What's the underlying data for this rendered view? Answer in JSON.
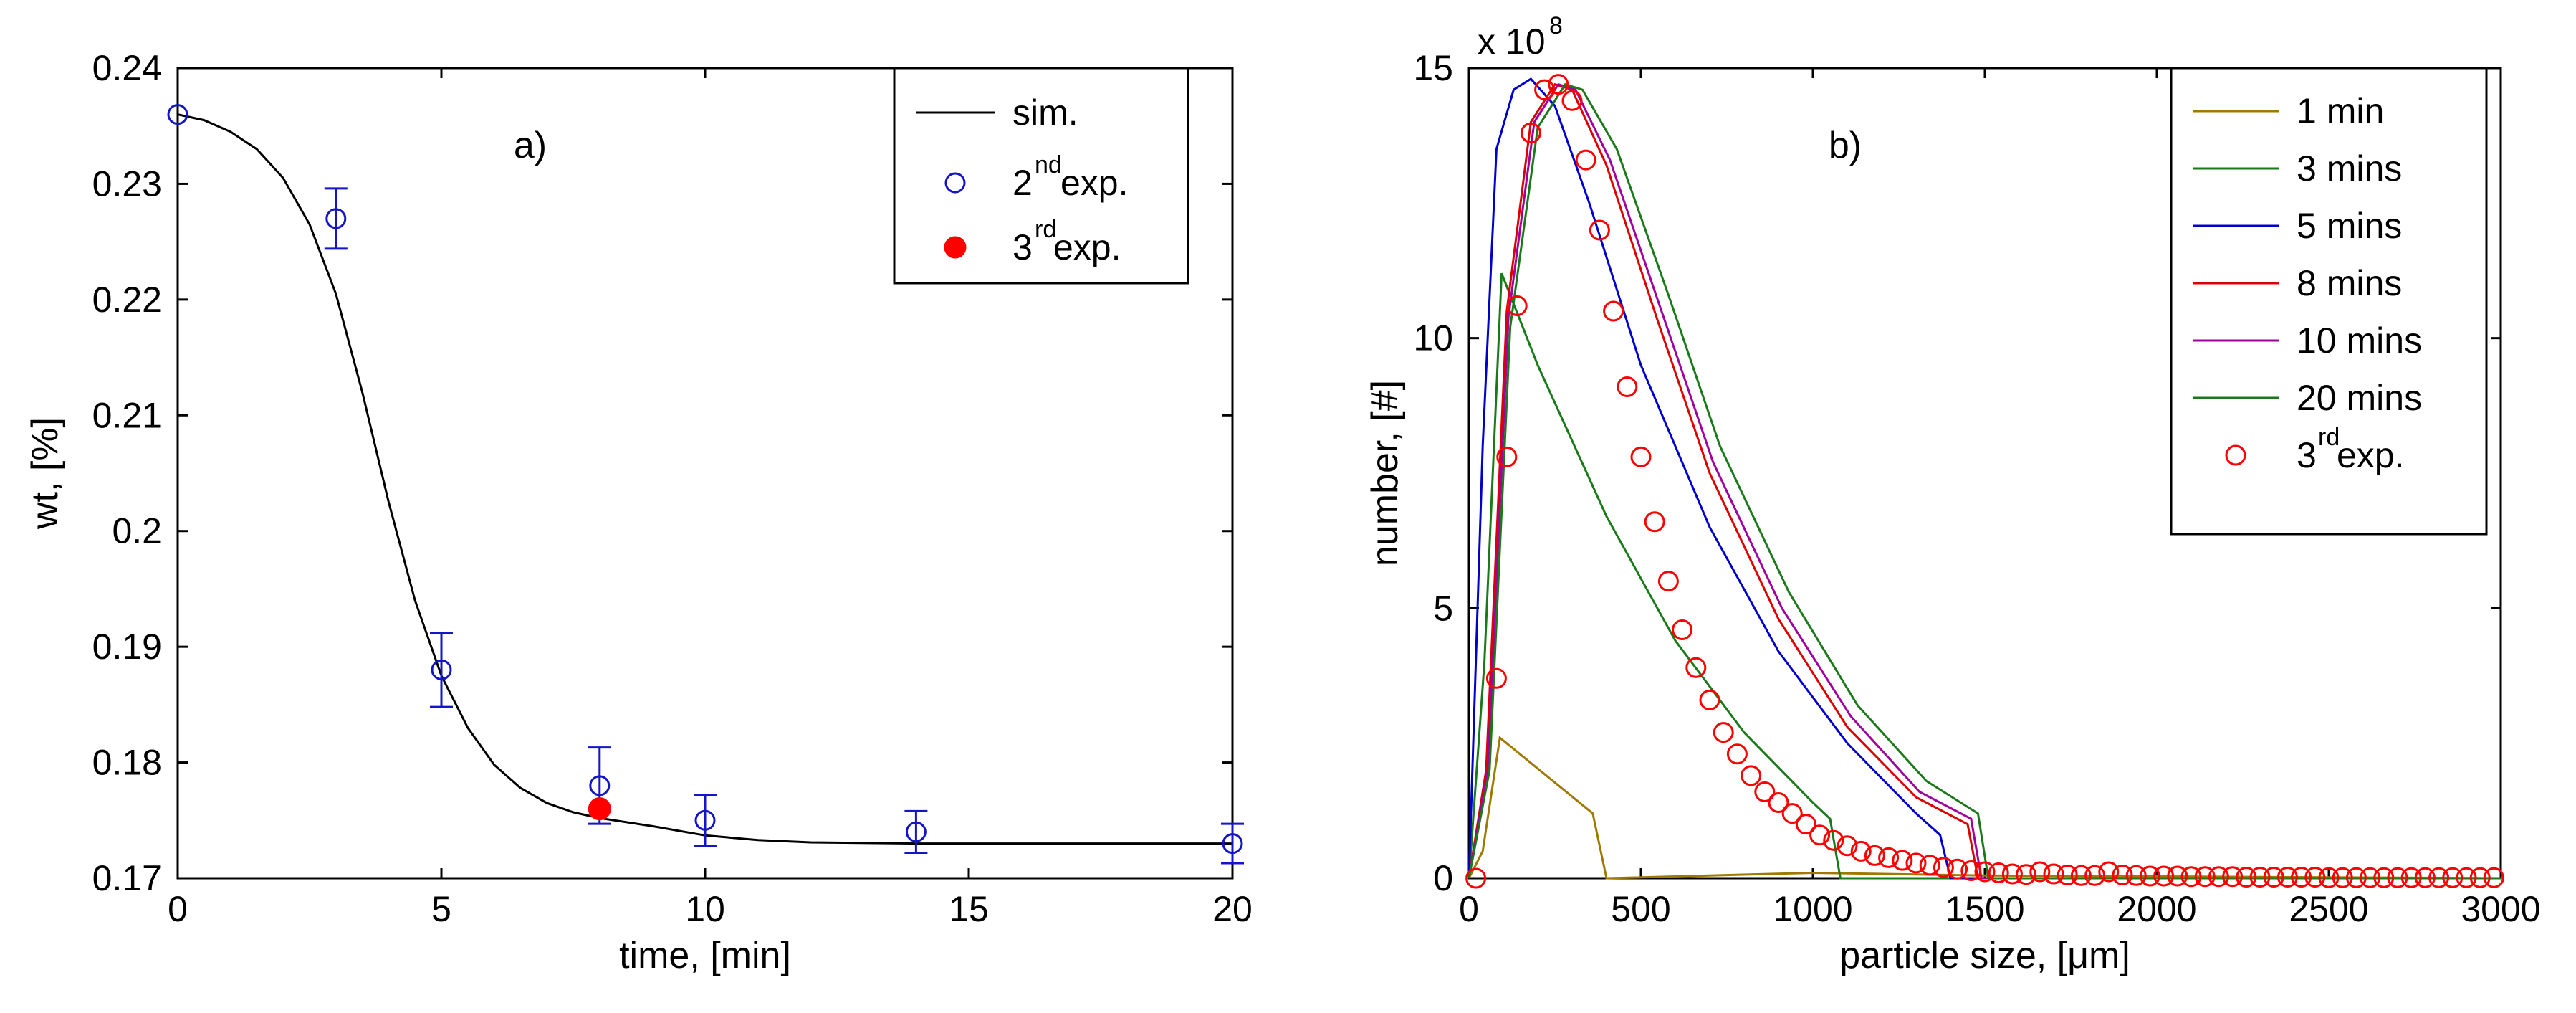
{
  "chart_data": [
    {
      "type": "line",
      "panel_label": "a)",
      "xlabel": "time, [min]",
      "ylabel": "wt, [%]",
      "xlim": [
        0,
        20
      ],
      "ylim": [
        0.17,
        0.24
      ],
      "xticks": [
        "0",
        "5",
        "10",
        "15",
        "20"
      ],
      "yticks": [
        "0.17",
        "0.18",
        "0.19",
        "0.2",
        "0.21",
        "0.22",
        "0.23",
        "0.24"
      ],
      "grid": false,
      "legend_position": "top-right",
      "series": [
        {
          "name": "sim.",
          "legend_label": "sim.",
          "style": "line",
          "color": "#000000",
          "x": [
            0,
            0.5,
            1,
            1.5,
            2,
            2.5,
            3,
            3.5,
            4,
            4.5,
            5,
            5.5,
            6,
            6.5,
            7,
            7.5,
            8,
            9,
            10,
            11,
            12,
            14,
            16,
            18,
            20
          ],
          "y": [
            0.236,
            0.2355,
            0.2345,
            0.233,
            0.2305,
            0.2265,
            0.2205,
            0.212,
            0.2025,
            0.194,
            0.1875,
            0.183,
            0.1798,
            0.1778,
            0.1765,
            0.1757,
            0.1752,
            0.1745,
            0.1737,
            0.1733,
            0.1731,
            0.173,
            0.173,
            0.173,
            0.173
          ]
        },
        {
          "name": "2nd exp.",
          "legend_label": "2",
          "legend_sup": "nd",
          "legend_suffix": " exp.",
          "style": "open-circle",
          "color": "#1414c8",
          "x": [
            0,
            3,
            5,
            8,
            10,
            14,
            20
          ],
          "y": [
            0.236,
            0.227,
            0.188,
            0.178,
            0.175,
            0.174,
            0.173
          ],
          "err": [
            0,
            0.0026,
            0.0032,
            0.0033,
            0.0022,
            0.0018,
            0.0017
          ]
        },
        {
          "name": "3rd exp.",
          "legend_label": "3",
          "legend_sup": "rd",
          "legend_suffix": " exp.",
          "style": "filled-circle",
          "color": "#ff0000",
          "x": [
            8
          ],
          "y": [
            0.176
          ]
        }
      ]
    },
    {
      "type": "line",
      "panel_label": "b)",
      "xlabel_prefix": "particle size, [",
      "xlabel_mu": "μ",
      "xlabel_suffix": "m]",
      "ylabel": "number, [#]",
      "exponent_label": "x 10",
      "exponent_power": "8",
      "xlim": [
        0,
        3000
      ],
      "ylim": [
        0,
        15
      ],
      "xticks": [
        "0",
        "500",
        "1000",
        "1500",
        "2000",
        "2500",
        "3000"
      ],
      "yticks": [
        "0",
        "5",
        "10",
        "15"
      ],
      "grid": false,
      "legend_position": "top-right",
      "series": [
        {
          "name": "1 min",
          "legend_label": "1 min",
          "style": "line",
          "color": "#a07a00",
          "x": [
            0,
            40,
            90,
            360,
            400,
            1000,
            1500,
            3000
          ],
          "y": [
            0,
            0.5,
            2.6,
            1.2,
            0,
            0.1,
            0.05,
            0
          ]
        },
        {
          "name": "3 mins",
          "legend_label": "3 mins",
          "style": "line",
          "color": "#1a7a1a",
          "x": [
            0,
            45,
            95,
            200,
            400,
            600,
            800,
            1000,
            1050,
            1080,
            3000
          ],
          "y": [
            0,
            4,
            11.2,
            9.5,
            6.7,
            4.4,
            2.7,
            1.4,
            1.1,
            0,
            0
          ]
        },
        {
          "name": "5 mins",
          "legend_label": "5 mins",
          "style": "line",
          "color": "#0000cc",
          "x": [
            0,
            40,
            80,
            130,
            180,
            250,
            350,
            500,
            700,
            900,
            1100,
            1300,
            1370,
            1400,
            3000
          ],
          "y": [
            0,
            8,
            13.5,
            14.6,
            14.8,
            14.3,
            12.5,
            9.5,
            6.5,
            4.2,
            2.5,
            1.2,
            0.8,
            0,
            0
          ]
        },
        {
          "name": "8 mins",
          "legend_label": "8 mins",
          "style": "line",
          "color": "#dd0000",
          "x": [
            0,
            50,
            110,
            180,
            250,
            300,
            400,
            550,
            700,
            900,
            1100,
            1300,
            1450,
            1480,
            3000
          ],
          "y": [
            0,
            2,
            10.5,
            14.0,
            14.7,
            14.6,
            13.2,
            10.3,
            7.5,
            4.8,
            2.8,
            1.5,
            1.0,
            0,
            0
          ]
        },
        {
          "name": "10 mins",
          "legend_label": "10 mins",
          "style": "line",
          "color": "#a000a0",
          "x": [
            0,
            55,
            115,
            190,
            260,
            310,
            410,
            560,
            710,
            910,
            1110,
            1310,
            1460,
            1490,
            3000
          ],
          "y": [
            0,
            2,
            10.4,
            14.0,
            14.7,
            14.6,
            13.3,
            10.5,
            7.7,
            5.0,
            3.0,
            1.6,
            1.1,
            0,
            0
          ]
        },
        {
          "name": "20 mins",
          "legend_label": "20 mins",
          "style": "line",
          "color": "#1a7a1a",
          "x": [
            0,
            60,
            120,
            200,
            280,
            330,
            430,
            580,
            730,
            930,
            1130,
            1330,
            1480,
            1510,
            3000
          ],
          "y": [
            0,
            2,
            10.2,
            13.9,
            14.7,
            14.6,
            13.5,
            10.8,
            8.0,
            5.3,
            3.2,
            1.8,
            1.2,
            0,
            0
          ]
        },
        {
          "name": "3rd exp.",
          "legend_label": "3",
          "legend_sup": "rd",
          "legend_suffix": " exp.",
          "style": "open-circle",
          "color": "#ff0000",
          "x": [
            20,
            80,
            110,
            140,
            180,
            220,
            260,
            300,
            340,
            380,
            420,
            460,
            500,
            540,
            580,
            620,
            660,
            700,
            740,
            780,
            820,
            860,
            900,
            940,
            980,
            1020,
            1060,
            1100,
            1140,
            1180,
            1220,
            1260,
            1300,
            1340,
            1380,
            1420,
            1460,
            1500,
            1540,
            1580,
            1620,
            1660,
            1700,
            1740,
            1780,
            1820,
            1860,
            1900,
            1940,
            1980,
            2020,
            2060,
            2100,
            2140,
            2180,
            2220,
            2260,
            2300,
            2340,
            2380,
            2420,
            2460,
            2500,
            2540,
            2580,
            2620,
            2660,
            2700,
            2740,
            2780,
            2820,
            2860,
            2900,
            2940,
            2980
          ],
          "y": [
            0,
            3.7,
            7.8,
            10.6,
            13.8,
            14.6,
            14.7,
            14.4,
            13.3,
            12.0,
            10.5,
            9.1,
            7.8,
            6.6,
            5.5,
            4.6,
            3.9,
            3.3,
            2.7,
            2.3,
            1.9,
            1.6,
            1.4,
            1.2,
            1.0,
            0.8,
            0.7,
            0.6,
            0.5,
            0.42,
            0.38,
            0.33,
            0.28,
            0.24,
            0.2,
            0.17,
            0.14,
            0.12,
            0.1,
            0.08,
            0.07,
            0.12,
            0.08,
            0.06,
            0.05,
            0.05,
            0.12,
            0.06,
            0.05,
            0.04,
            0.04,
            0.04,
            0.03,
            0.03,
            0.03,
            0.03,
            0.02,
            0.02,
            0.02,
            0.02,
            0.02,
            0.02,
            0.01,
            0.01,
            0.01,
            0.01,
            0.01,
            0.01,
            0.01,
            0.01,
            0.01,
            0.01,
            0.01,
            0.01,
            0.01
          ]
        }
      ]
    }
  ]
}
